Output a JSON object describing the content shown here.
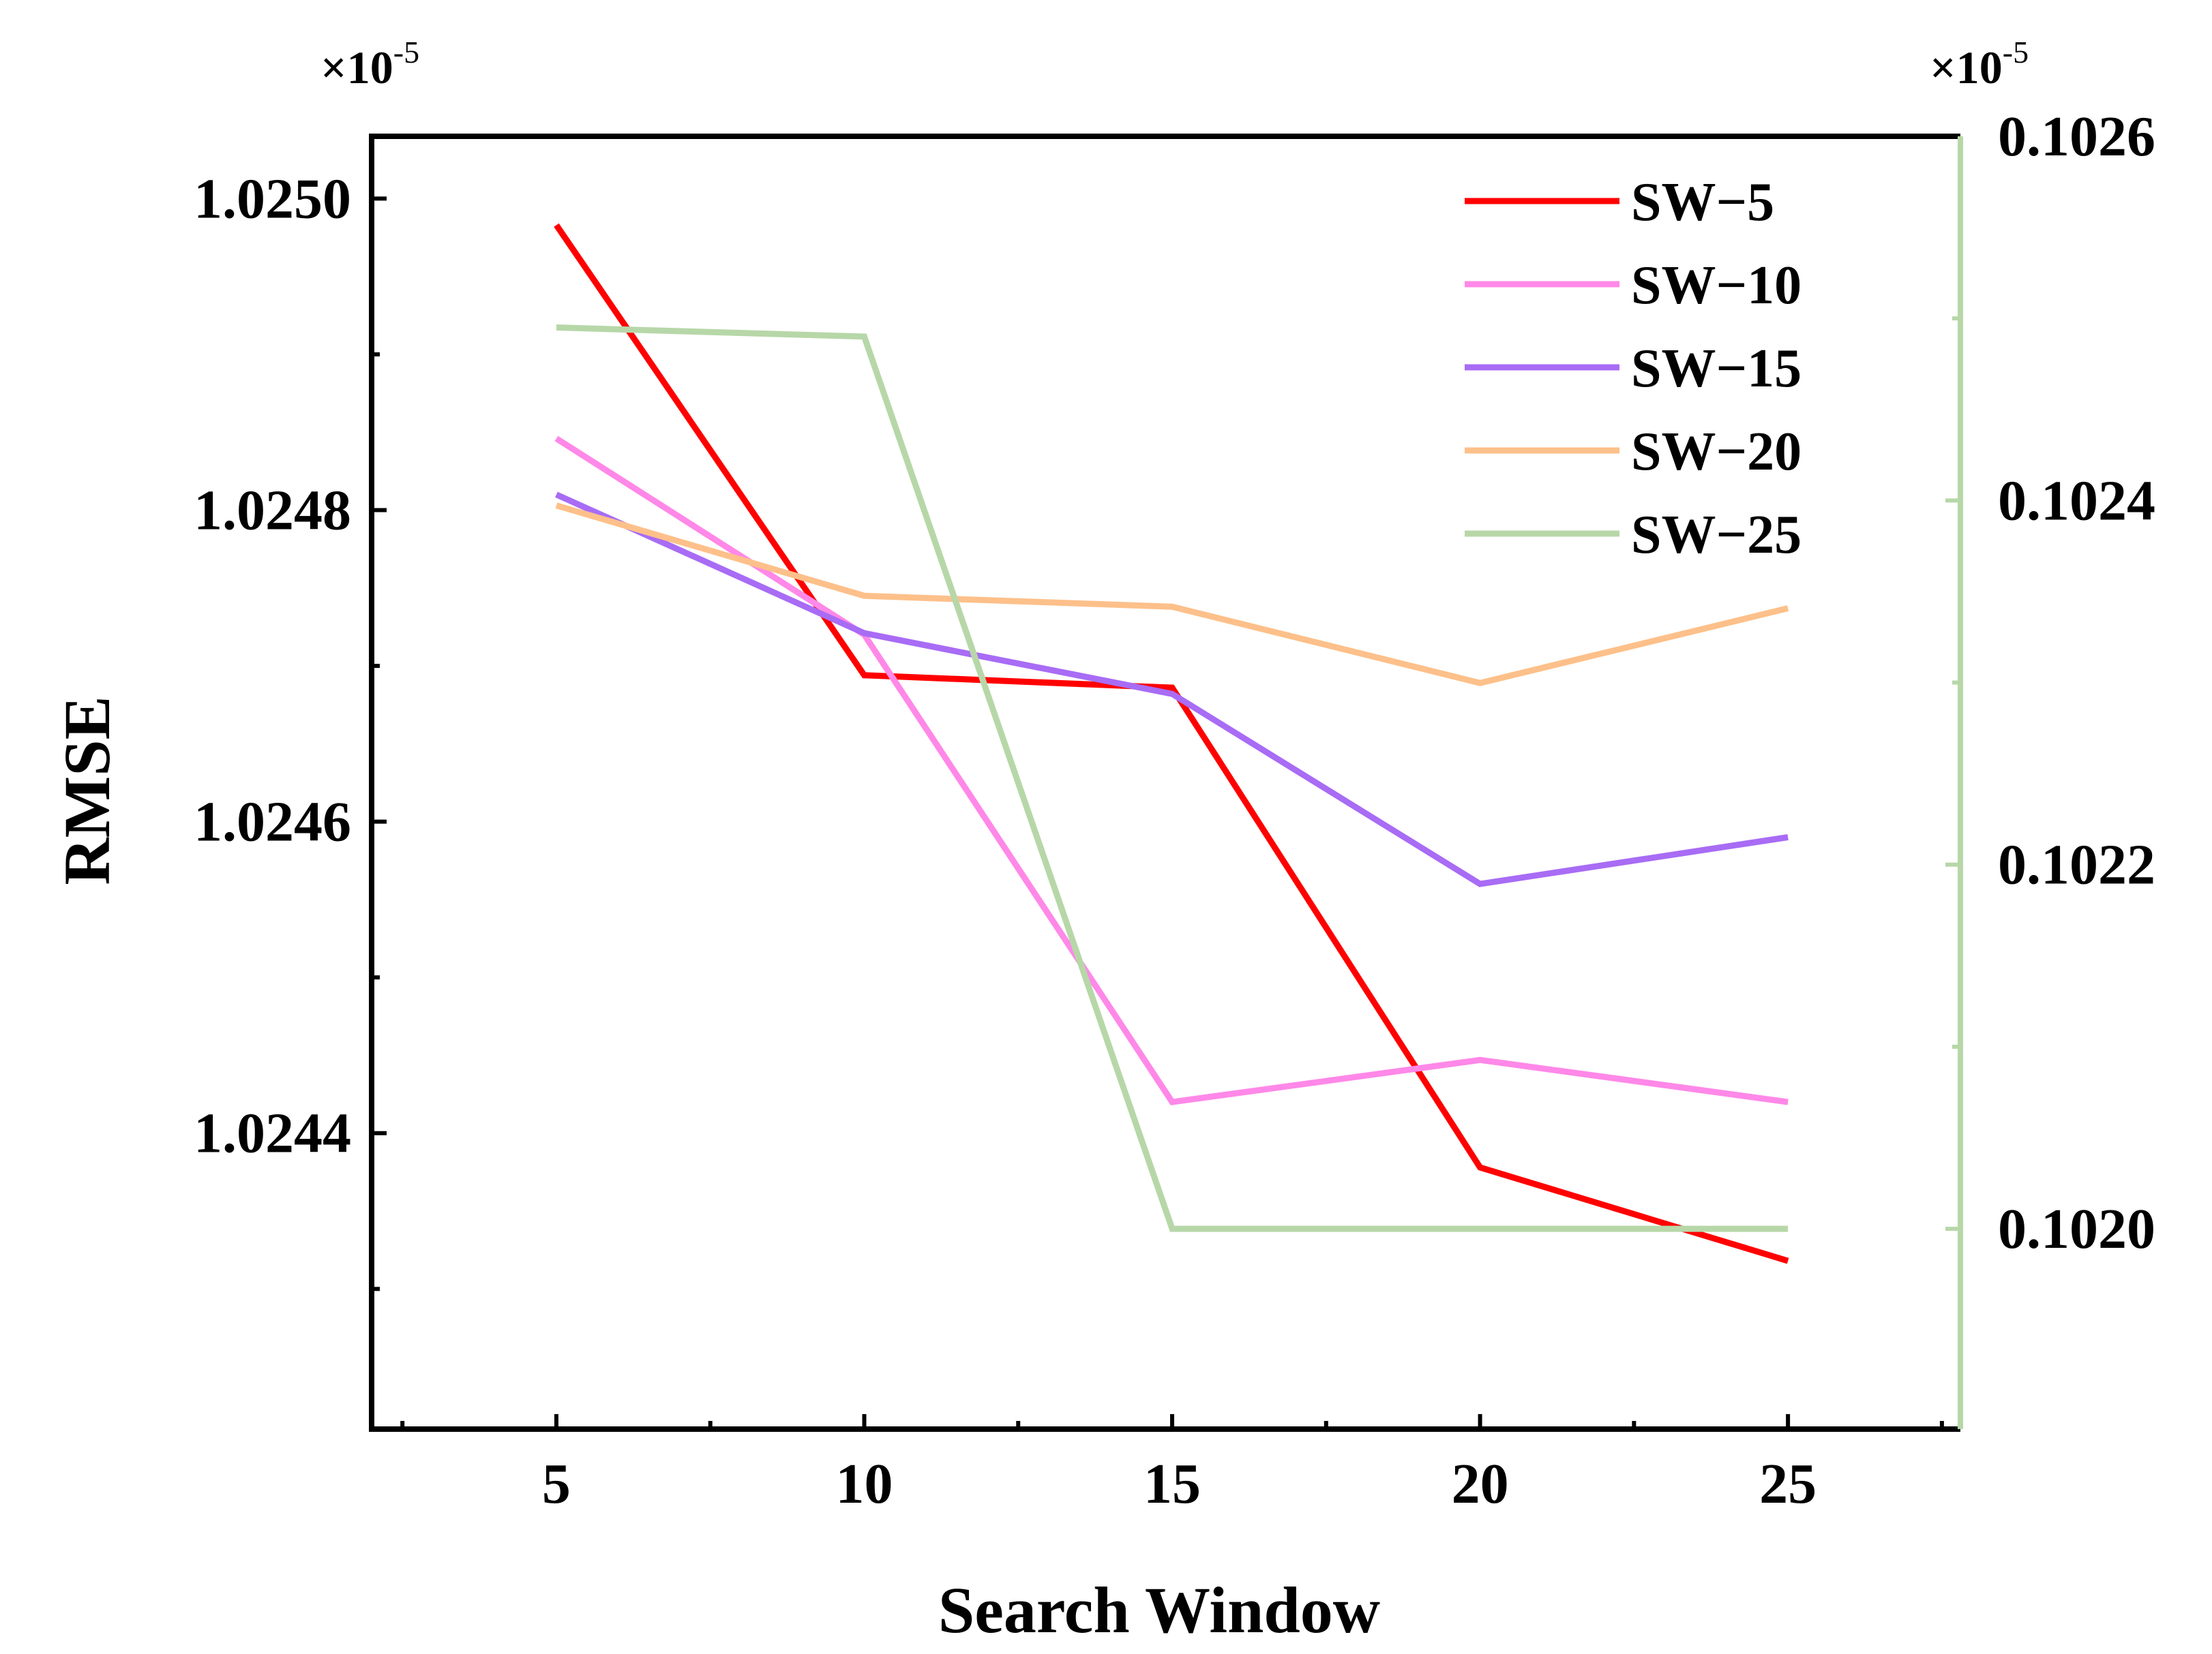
{
  "chart_data": {
    "type": "line",
    "xlabel": "Search Window",
    "ylabel": "RMSE",
    "x": [
      5,
      10,
      15,
      20,
      25
    ],
    "xticks": [
      "5",
      "10",
      "15",
      "20",
      "25"
    ],
    "xlim": [
      2,
      27.8
    ],
    "ylim": [
      1.02421,
      1.02504
    ],
    "yticks": [
      "1.0244",
      "1.0246",
      "1.0248",
      "1.0250"
    ],
    "y_multiplier": "×10",
    "y_multiplier_exp": "-5",
    "y2lim": [
      0.10189,
      0.1026
    ],
    "y2ticks": [
      "0.1020",
      "0.1022",
      "0.1024",
      "0.1026"
    ],
    "y2_multiplier": "×10",
    "y2_multiplier_exp": "-5",
    "y2_color": "#b7d7a8",
    "legend_position": "top-right",
    "series": [
      {
        "name": "SW−5",
        "color": "#ff0000",
        "axis": "left",
        "values": [
          1.024983,
          1.024694,
          1.024686,
          1.024378,
          1.024318
        ]
      },
      {
        "name": "SW−10",
        "color": "#ff88e8",
        "axis": "left",
        "values": [
          1.024846,
          1.02472,
          1.02442,
          1.024447,
          1.02442
        ]
      },
      {
        "name": "SW−15",
        "color": "#a86cf5",
        "axis": "left",
        "values": [
          1.02481,
          1.024721,
          1.024682,
          1.02456,
          1.02459
        ]
      },
      {
        "name": "SW−20",
        "color": "#fdc08a",
        "axis": "left",
        "values": [
          1.024803,
          1.024745,
          1.024738,
          1.024689,
          1.024737
        ]
      },
      {
        "name": "SW−25",
        "color": "#b7d7a8",
        "axis": "right",
        "values": [
          0.102495,
          0.10249,
          0.102,
          0.102,
          0.102
        ]
      }
    ]
  }
}
